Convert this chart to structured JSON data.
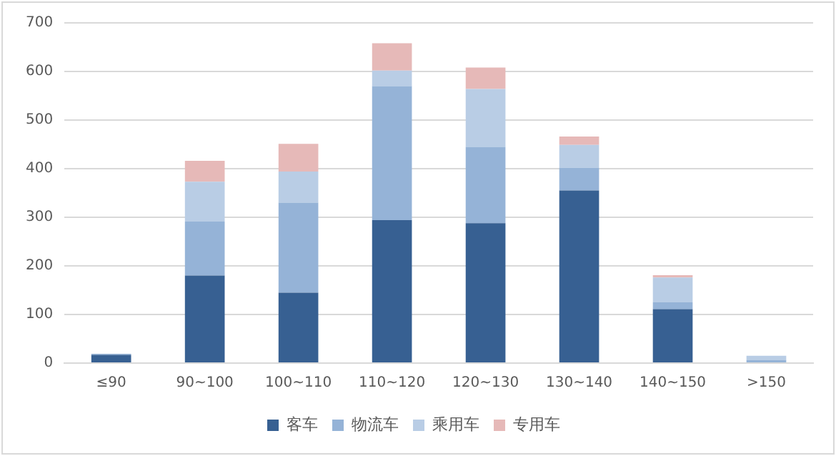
{
  "chart_data": {
    "type": "bar",
    "stacked": true,
    "categories": [
      "≤90",
      "90~100",
      "100~110",
      "110~120",
      "120~130",
      "130~140",
      "140~150",
      ">150"
    ],
    "series": [
      {
        "name": "客车",
        "color": "#376092",
        "values": [
          17,
          180,
          145,
          294,
          288,
          355,
          111,
          0
        ]
      },
      {
        "name": "物流车",
        "color": "#95b3d7",
        "values": [
          2,
          111,
          185,
          276,
          157,
          47,
          14,
          6
        ]
      },
      {
        "name": "乘用车",
        "color": "#b9cde5",
        "values": [
          0,
          82,
          64,
          32,
          119,
          47,
          51,
          9
        ]
      },
      {
        "name": "专用车",
        "color": "#e6b9b8",
        "values": [
          0,
          43,
          57,
          56,
          44,
          17,
          5,
          0
        ]
      }
    ],
    "ylim": [
      0,
      700
    ],
    "yticks": [
      0,
      100,
      200,
      300,
      400,
      500,
      600,
      700
    ],
    "grid": "y",
    "legend": "bottom"
  }
}
